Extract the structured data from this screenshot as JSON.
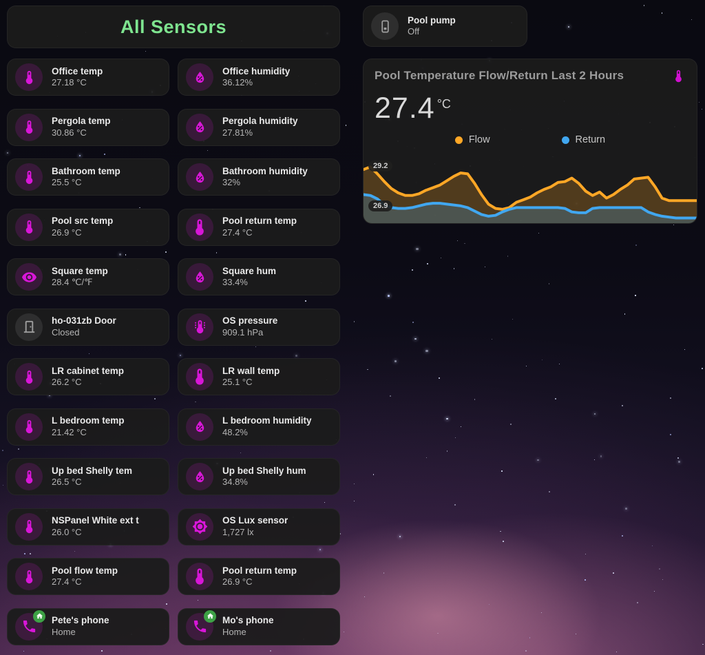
{
  "header": {
    "title": "All Sensors"
  },
  "colors": {
    "header_green": "#7ee48f",
    "accent_magenta": "#d816d8",
    "gray_icon": "#9e9e9e",
    "badge_green": "#3da145",
    "flow_orange": "#ffa726",
    "return_blue": "#41a7f0"
  },
  "sensors": [
    {
      "name": "Office temp",
      "value": "27.18 °C",
      "icon": "thermometer"
    },
    {
      "name": "Office humidity",
      "value": "36.12%",
      "icon": "humidity"
    },
    {
      "name": "Pergola temp",
      "value": "30.86 °C",
      "icon": "thermometer"
    },
    {
      "name": "Pergola humidity",
      "value": "27.81%",
      "icon": "humidity"
    },
    {
      "name": "Bathroom temp",
      "value": "25.5 °C",
      "icon": "thermometer"
    },
    {
      "name": "Bathroom humidity",
      "value": "32%",
      "icon": "humidity"
    },
    {
      "name": "Pool src temp",
      "value": "26.9 °C",
      "icon": "thermometer"
    },
    {
      "name": "Pool return temp",
      "value": "27.4 °C",
      "icon": "thermometer",
      "big": true
    },
    {
      "name": "Square temp",
      "value": "28.4 ℃/℉",
      "icon": "eye"
    },
    {
      "name": "Square hum",
      "value": "33.4%",
      "icon": "humidity"
    },
    {
      "name": "ho-031zb Door",
      "value": "Closed",
      "icon": "door",
      "gray": true
    },
    {
      "name": "OS pressure",
      "value": "909.1 hPa",
      "icon": "pressure"
    },
    {
      "name": "LR cabinet temp",
      "value": "26.2 °C",
      "icon": "thermometer"
    },
    {
      "name": "LR wall temp",
      "value": "25.1 °C",
      "icon": "thermometer",
      "big": true
    },
    {
      "name": "L bedroom temp",
      "value": "21.42 °C",
      "icon": "thermometer"
    },
    {
      "name": "L bedroom humidity",
      "value": "48.2%",
      "icon": "humidity"
    },
    {
      "name": "Up bed Shelly tem",
      "value": "26.5 °C",
      "icon": "thermometer"
    },
    {
      "name": "Up bed Shelly hum",
      "value": "34.8%",
      "icon": "humidity"
    },
    {
      "name": "NSPanel White ext t",
      "value": "26.0 °C",
      "icon": "thermometer"
    },
    {
      "name": "OS Lux sensor",
      "value": "1,727 lx",
      "icon": "sun"
    },
    {
      "name": "Pool flow temp",
      "value": "27.4 °C",
      "icon": "thermometer"
    },
    {
      "name": "Pool return temp",
      "value": "26.9 °C",
      "icon": "thermometer",
      "big": true
    },
    {
      "name": "Pete's phone",
      "value": "Home",
      "icon": "phone",
      "badge": "home"
    },
    {
      "name": "Mo's phone",
      "value": "Home",
      "icon": "phone",
      "badge": "home"
    }
  ],
  "pool_pump": {
    "name": "Pool pump",
    "value": "Off",
    "icon": "switch"
  },
  "chart_card": {
    "title": "Pool Temperature Flow/Return Last 2 Hours",
    "header_icon": "thermometer",
    "value": "27.4",
    "unit": "°C",
    "legend": [
      {
        "label": "Flow",
        "color": "#ffa726"
      },
      {
        "label": "Return",
        "color": "#41a7f0"
      }
    ],
    "badges": {
      "max": "29.2",
      "min": "26.9"
    },
    "chart_data": {
      "type": "line",
      "title": "Pool Temperature Flow/Return Last 2 Hours",
      "x_range": "last 2 hours",
      "ylabel": "°C",
      "ylim": [
        26.1,
        29.8
      ],
      "grid": false,
      "legend_position": "top",
      "annotations": {
        "flow_max": 29.2,
        "flow_min": 26.9
      },
      "series": [
        {
          "name": "Flow",
          "color": "#ffa726",
          "values": [
            29.2,
            29.35,
            28.95,
            28.5,
            28.1,
            27.85,
            27.7,
            27.7,
            27.8,
            28.0,
            28.15,
            28.3,
            28.55,
            28.8,
            29.0,
            28.95,
            28.4,
            27.75,
            27.2,
            26.95,
            26.9,
            27.0,
            27.3,
            27.45,
            27.6,
            27.85,
            28.05,
            28.2,
            28.45,
            28.5,
            28.7,
            28.4,
            27.95,
            27.7,
            27.9,
            27.55,
            27.75,
            28.05,
            28.3,
            28.65,
            28.7,
            28.75,
            28.2,
            27.55,
            27.4,
            27.4,
            27.4,
            27.4,
            27.4
          ]
        },
        {
          "name": "Return",
          "color": "#41a7f0",
          "values": [
            27.75,
            27.7,
            27.5,
            27.15,
            27.0,
            26.95,
            26.95,
            27.0,
            27.1,
            27.2,
            27.25,
            27.25,
            27.2,
            27.15,
            27.1,
            27.0,
            26.8,
            26.6,
            26.5,
            26.55,
            26.75,
            26.9,
            27.0,
            27.0,
            27.0,
            27.0,
            27.0,
            27.0,
            27.0,
            26.95,
            26.75,
            26.7,
            26.7,
            26.95,
            27.0,
            27.0,
            27.0,
            27.0,
            27.0,
            27.0,
            27.0,
            26.75,
            26.6,
            26.5,
            26.45,
            26.4,
            26.4,
            26.4,
            26.4
          ]
        }
      ]
    }
  }
}
